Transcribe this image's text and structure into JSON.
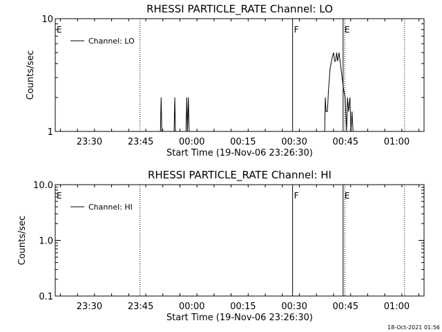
{
  "chart_data": [
    {
      "type": "line",
      "title": "RHESSI PARTICLE_RATE Channel: LO",
      "xlabel": "Start Time (19-Nov-06 23:26:30)",
      "ylabel": "Counts/sec",
      "x_tick_labels": [
        "23:30",
        "23:45",
        "00:00",
        "00:15",
        "00:30",
        "00:45",
        "01:00"
      ],
      "x_tick_minutes": [
        3.5,
        18.5,
        33.5,
        48.5,
        63.5,
        78.5,
        93.5
      ],
      "xlim_minutes": [
        -6.5,
        101.5
      ],
      "y_scale": "log",
      "ylim": [
        1,
        10
      ],
      "y_tick_labels": [
        "1",
        "10"
      ],
      "y_tick_values": [
        1,
        10
      ],
      "legend": {
        "label": "Channel: LO",
        "placement": "top-left"
      },
      "markers": [
        {
          "label": "E",
          "x_minutes": -6.5,
          "style": "none"
        },
        {
          "label": "",
          "x_minutes": 18.3,
          "style": "dotted"
        },
        {
          "label": "F",
          "x_minutes": 63.0,
          "style": "solid"
        },
        {
          "label": "E",
          "x_minutes": 77.8,
          "style": "solid"
        },
        {
          "label": "",
          "x_minutes": 78.3,
          "style": "dotted"
        },
        {
          "label": "",
          "x_minutes": 95.8,
          "style": "dotted"
        }
      ],
      "series": [
        {
          "name": "Channel: LO",
          "points": [
            [
              24.3,
              1
            ],
            [
              24.5,
              2
            ],
            [
              24.7,
              1
            ],
            [
              28.3,
              1
            ],
            [
              28.5,
              2
            ],
            [
              28.7,
              1
            ],
            [
              31.8,
              1
            ],
            [
              32.0,
              2
            ],
            [
              32.2,
              1
            ],
            [
              32.5,
              2
            ],
            [
              32.7,
              1
            ],
            [
              72.4,
              1
            ],
            [
              72.6,
              2
            ],
            [
              72.8,
              1.5
            ],
            [
              73.2,
              1.5
            ],
            [
              73.5,
              2.3
            ],
            [
              74.0,
              3.6
            ],
            [
              74.5,
              4.4
            ],
            [
              75.0,
              5.0
            ],
            [
              75.3,
              4.2
            ],
            [
              75.6,
              4.2
            ],
            [
              75.9,
              5.0
            ],
            [
              76.2,
              4.2
            ],
            [
              76.6,
              5.0
            ],
            [
              77.0,
              4.0
            ],
            [
              77.5,
              3.0
            ],
            [
              78.0,
              2.3
            ],
            [
              78.4,
              2.0
            ],
            [
              78.8,
              1.0
            ],
            [
              79.1,
              2.0
            ],
            [
              79.4,
              1.5
            ],
            [
              79.8,
              2.0
            ],
            [
              80.1,
              1.0
            ],
            [
              80.4,
              1.5
            ],
            [
              80.7,
              1.0
            ]
          ]
        }
      ]
    },
    {
      "type": "line",
      "title": "RHESSI PARTICLE_RATE Channel: HI",
      "xlabel": "Start Time (19-Nov-06 23:26:30)",
      "ylabel": "Counts/sec",
      "x_tick_labels": [
        "23:30",
        "23:45",
        "00:00",
        "00:15",
        "00:30",
        "00:45",
        "01:00"
      ],
      "x_tick_minutes": [
        3.5,
        18.5,
        33.5,
        48.5,
        63.5,
        78.5,
        93.5
      ],
      "xlim_minutes": [
        -6.5,
        101.5
      ],
      "y_scale": "log",
      "ylim": [
        0.1,
        10
      ],
      "y_tick_labels": [
        "0.1",
        "1.0",
        "10.0"
      ],
      "y_tick_values": [
        0.1,
        1,
        10
      ],
      "legend": {
        "label": "Channel: HI",
        "placement": "top-left"
      },
      "markers": [
        {
          "label": "E",
          "x_minutes": -6.5,
          "style": "none"
        },
        {
          "label": "",
          "x_minutes": 18.3,
          "style": "dotted"
        },
        {
          "label": "F",
          "x_minutes": 63.0,
          "style": "solid"
        },
        {
          "label": "E",
          "x_minutes": 77.8,
          "style": "solid"
        },
        {
          "label": "",
          "x_minutes": 78.3,
          "style": "dotted"
        },
        {
          "label": "",
          "x_minutes": 95.8,
          "style": "dotted"
        }
      ],
      "series": [
        {
          "name": "Channel: HI",
          "points": []
        }
      ]
    }
  ],
  "footer": {
    "timestamp": "18-Oct-2021 01:56"
  }
}
